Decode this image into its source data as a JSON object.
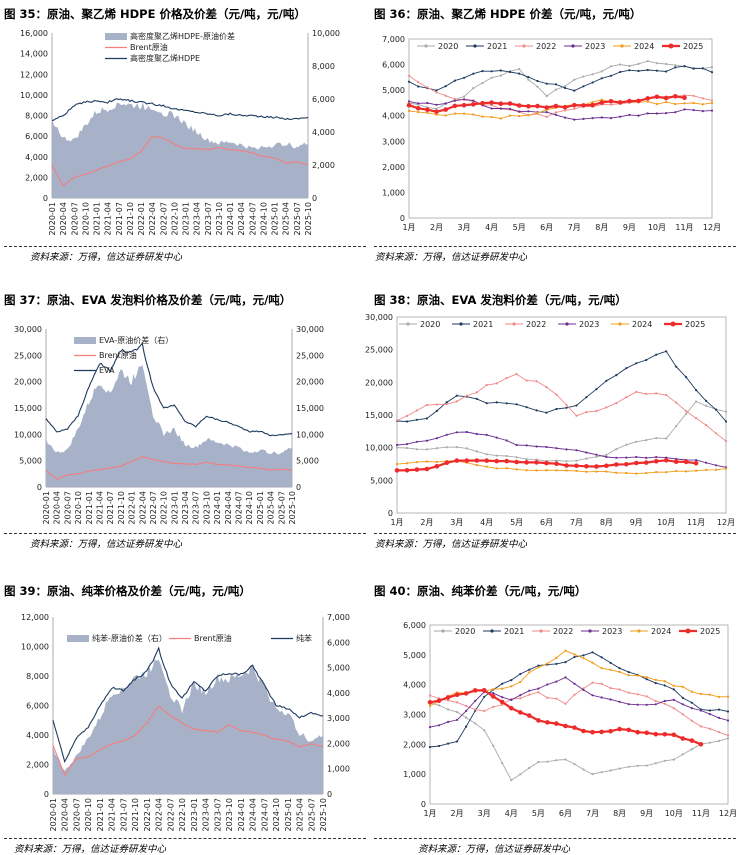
{
  "source_text": "资料来源：万得，信达证券研发中心",
  "chart_data": [
    {
      "id": "fig35",
      "type": "area-line",
      "title": "图 35：原油、聚乙烯 HDPE 价格及价差（元/吨，元/吨）",
      "legend": [
        "高密度聚乙烯HDPE-原油价差",
        "Brent原油",
        "高密度聚乙烯HDPE"
      ],
      "left_axis": {
        "min": 0,
        "max": 16000,
        "ticks": [
          "0",
          "2,000",
          "4,000",
          "6,000",
          "8,000",
          "10,000",
          "12,000",
          "14,000",
          "16,000"
        ]
      },
      "right_axis": {
        "min": 0,
        "max": 10000,
        "ticks": [
          "0",
          "2,000",
          "4,000",
          "6,000",
          "8,000",
          "10,000"
        ]
      },
      "x_labels": [
        "2020-01",
        "2020-04",
        "2020-07",
        "2020-10",
        "2021-01",
        "2021-04",
        "2021-07",
        "2021-10",
        "2022-01",
        "2022-04",
        "2022-07",
        "2022-10",
        "2023-01",
        "2023-04",
        "2023-07",
        "2023-10",
        "2024-01",
        "2024-04",
        "2024-07",
        "2024-10",
        "2025-01",
        "2025-04",
        "2025-07",
        "2025-10"
      ],
      "series": [
        {
          "name": "高密度聚乙烯HDPE-原油价差",
          "axis": "right",
          "kind": "area",
          "values": [
            4800,
            3600,
            3500,
            4400,
            5200,
            5400,
            5800,
            5600,
            5600,
            5500,
            5200,
            5000,
            4500,
            4000,
            3500,
            3300,
            3400,
            3200,
            3000,
            3100,
            3200,
            3300,
            3100,
            3300
          ]
        },
        {
          "name": "Brent原油",
          "axis": "left",
          "kind": "line",
          "values": [
            3200,
            1200,
            2000,
            2300,
            2700,
            3100,
            3500,
            3800,
            4500,
            6000,
            5800,
            5200,
            4800,
            4800,
            4700,
            4900,
            4700,
            4600,
            4400,
            4000,
            3900,
            3400,
            3500,
            3200
          ]
        },
        {
          "name": "高密度聚乙烯HDPE",
          "axis": "right",
          "kind": "line",
          "values": [
            4700,
            5000,
            5600,
            5800,
            5900,
            5800,
            6000,
            5900,
            5800,
            5700,
            5600,
            5400,
            5300,
            5200,
            5100,
            5000,
            5100,
            5000,
            5000,
            4900,
            4900,
            4800,
            4800,
            4900
          ]
        }
      ]
    },
    {
      "id": "fig36",
      "type": "line",
      "title": "图 36：原油、聚乙烯 HDPE 价差（元/吨，元/吨）",
      "y_axis": {
        "min": 0,
        "max": 7000,
        "ticks": [
          "0",
          "1,000",
          "2,000",
          "3,000",
          "4,000",
          "5,000",
          "6,000",
          "7,000"
        ]
      },
      "x_labels": [
        "1月",
        "2月",
        "3月",
        "4月",
        "5月",
        "6月",
        "7月",
        "8月",
        "9月",
        "10月",
        "11月",
        "12月"
      ],
      "series": [
        {
          "name": "2020",
          "values": [
            4500,
            4300,
            4800,
            5500,
            5800,
            4800,
            5400,
            5800,
            6000,
            6100,
            5900,
            5900
          ]
        },
        {
          "name": "2021",
          "values": [
            5300,
            5000,
            5500,
            5800,
            5600,
            5300,
            5000,
            5400,
            5800,
            5700,
            6000,
            5700
          ]
        },
        {
          "name": "2022",
          "values": [
            5500,
            4900,
            4600,
            4400,
            4100,
            4000,
            4300,
            4400,
            4500,
            4700,
            4800,
            4600
          ]
        },
        {
          "name": "2023",
          "values": [
            4600,
            4400,
            4700,
            4300,
            4200,
            4100,
            3800,
            3900,
            4000,
            4100,
            4200,
            4200
          ]
        },
        {
          "name": "2024",
          "values": [
            4200,
            4000,
            4100,
            3900,
            4000,
            4200,
            4400,
            4600,
            4600,
            4500,
            4500,
            4500
          ]
        },
        {
          "name": "2025",
          "values": [
            4400,
            4200,
            4400,
            4500,
            4400,
            4300,
            4400,
            4500,
            4600,
            4700,
            4700
          ]
        }
      ]
    },
    {
      "id": "fig37",
      "type": "area-line",
      "title": "图 37：原油、EVA 发泡料价格及价差（元/吨，元/吨）",
      "legend": [
        "EVA-原油价差（右）",
        "Brent原油",
        "EVA"
      ],
      "left_axis": {
        "min": 0,
        "max": 30000,
        "ticks": [
          "0",
          "5,000",
          "10,000",
          "15,000",
          "20,000",
          "25,000",
          "30,000"
        ]
      },
      "right_axis": {
        "min": 0,
        "max": 30000,
        "ticks": [
          "0",
          "5,000",
          "10,000",
          "15,000",
          "20,000",
          "25,000",
          "30,000"
        ]
      },
      "x_labels": [
        "2020-01",
        "2020-04",
        "2020-07",
        "2020-10",
        "2021-01",
        "2021-04",
        "2021-07",
        "2021-10",
        "2022-01",
        "2022-04",
        "2022-07",
        "2022-10",
        "2023-01",
        "2023-04",
        "2023-07",
        "2023-10",
        "2024-01",
        "2024-04",
        "2024-07",
        "2024-10",
        "2025-01",
        "2025-04",
        "2025-07",
        "2025-10"
      ],
      "series": [
        {
          "name": "EVA-原油价差（右）",
          "axis": "right",
          "kind": "area",
          "values": [
            9000,
            6500,
            7000,
            11000,
            16000,
            20000,
            18000,
            22000,
            20000,
            24000,
            14000,
            10000,
            11000,
            8000,
            7500,
            9000,
            8500,
            8000,
            7500,
            6500,
            7000,
            6500,
            6500,
            7500
          ]
        },
        {
          "name": "Brent原油",
          "axis": "left",
          "kind": "line",
          "values": [
            3200,
            1500,
            2300,
            2500,
            3000,
            3300,
            3600,
            4000,
            4800,
            5800,
            5200,
            4800,
            4500,
            4400,
            4300,
            4700,
            4300,
            4200,
            4000,
            3700,
            3600,
            3200,
            3400,
            3200
          ]
        },
        {
          "name": "EVA",
          "axis": "left",
          "kind": "line",
          "values": [
            13000,
            10500,
            11000,
            13500,
            19000,
            23500,
            22000,
            26000,
            25500,
            27000,
            19000,
            15000,
            15500,
            12500,
            11500,
            13500,
            12800,
            12300,
            11500,
            10500,
            10600,
            9800,
            9900,
            10200
          ]
        }
      ]
    },
    {
      "id": "fig38",
      "type": "line",
      "title": "图 38：原油、EVA 发泡料价差（元/吨，元/吨）",
      "y_axis": {
        "min": 0,
        "max": 30000,
        "ticks": [
          "0",
          "5,000",
          "10,000",
          "15,000",
          "20,000",
          "25,000",
          "30,000"
        ]
      },
      "x_labels": [
        "1月",
        "2月",
        "3月",
        "4月",
        "5月",
        "6月",
        "7月",
        "8月",
        "9月",
        "10月",
        "11月",
        "12月"
      ],
      "series": [
        {
          "name": "2020",
          "values": [
            10000,
            9800,
            10200,
            9000,
            8500,
            8000,
            8000,
            9000,
            11000,
            11500,
            17000,
            15500
          ]
        },
        {
          "name": "2021",
          "values": [
            14000,
            14500,
            18000,
            17000,
            16500,
            15500,
            16500,
            20000,
            23000,
            24500,
            19000,
            14000
          ]
        },
        {
          "name": "2022",
          "values": [
            14000,
            16500,
            17000,
            19500,
            21000,
            19500,
            15000,
            16000,
            18500,
            18000,
            14500,
            11000
          ]
        },
        {
          "name": "2023",
          "values": [
            10500,
            11000,
            12500,
            12000,
            10500,
            10000,
            9500,
            8500,
            8500,
            8500,
            8000,
            7000
          ]
        },
        {
          "name": "2024",
          "values": [
            7500,
            7800,
            8000,
            7000,
            6700,
            6500,
            6400,
            6300,
            6100,
            6300,
            6500,
            6800
          ]
        },
        {
          "name": "2025",
          "values": [
            6500,
            6800,
            8000,
            8000,
            7800,
            7600,
            7200,
            7200,
            7700,
            8000,
            7600
          ]
        }
      ]
    },
    {
      "id": "fig39",
      "type": "area-line",
      "title": "图 39：原油、纯苯价格及价差（元/吨，元/吨）",
      "legend": [
        "纯苯-原油价差（右）",
        "Brent原油",
        "纯苯"
      ],
      "left_axis": {
        "min": 0,
        "max": 12000,
        "ticks": [
          "0",
          "2,000",
          "4,000",
          "6,000",
          "8,000",
          "10,000",
          "12,000"
        ]
      },
      "right_axis": {
        "min": 0,
        "max": 7000,
        "ticks": [
          "0",
          "1,000",
          "2,000",
          "3,000",
          "4,000",
          "5,000",
          "6,000",
          "7,000"
        ]
      },
      "x_labels": [
        "2020-01",
        "2020-04",
        "2020-07",
        "2020-10",
        "2021-01",
        "2021-04",
        "2021-07",
        "2021-10",
        "2022-01",
        "2022-04",
        "2022-07",
        "2022-10",
        "2023-01",
        "2023-04",
        "2023-07",
        "2023-10",
        "2024-01",
        "2024-04",
        "2024-07",
        "2024-10",
        "2025-01",
        "2025-04",
        "2025-07",
        "2025-10"
      ],
      "series": [
        {
          "name": "纯苯-原油价差（右）",
          "axis": "right",
          "kind": "area",
          "values": [
            1800,
            900,
            1500,
            2200,
            3000,
            4000,
            4200,
            4600,
            4800,
            5500,
            4000,
            3300,
            4400,
            4000,
            4600,
            4500,
            4700,
            5000,
            4200,
            3400,
            3200,
            2400,
            2100,
            2300
          ]
        },
        {
          "name": "Brent原油",
          "axis": "left",
          "kind": "line",
          "values": [
            3300,
            1300,
            2400,
            2500,
            3000,
            3400,
            3600,
            4000,
            4800,
            6000,
            5300,
            4800,
            4400,
            4300,
            4200,
            4700,
            4300,
            4200,
            4000,
            3700,
            3600,
            3200,
            3400,
            3200
          ]
        },
        {
          "name": "纯苯",
          "axis": "left",
          "kind": "line",
          "values": [
            5000,
            2200,
            3800,
            4500,
            6000,
            7200,
            7000,
            7800,
            8300,
            9800,
            7500,
            6500,
            7600,
            7000,
            8000,
            8200,
            8100,
            8700,
            7400,
            6000,
            5800,
            5200,
            5500,
            5300
          ]
        }
      ]
    },
    {
      "id": "fig40",
      "type": "line",
      "title": "图 40：原油、纯苯价差（元/吨，元/吨）",
      "y_axis": {
        "min": 0,
        "max": 6000,
        "ticks": [
          "0",
          "1,000",
          "2,000",
          "3,000",
          "4,000",
          "5,000",
          "6,000"
        ]
      },
      "x_labels": [
        "1月",
        "2月",
        "3月",
        "4月",
        "5月",
        "6月",
        "7月",
        "8月",
        "9月",
        "10月",
        "11月",
        "12月"
      ],
      "series": [
        {
          "name": "2020",
          "values": [
            3400,
            3100,
            2500,
            800,
            1400,
            1500,
            1000,
            1200,
            1300,
            1500,
            2000,
            2200
          ]
        },
        {
          "name": "2021",
          "values": [
            1900,
            2100,
            3600,
            4200,
            4600,
            4800,
            5100,
            4500,
            4200,
            3800,
            3200,
            3100
          ]
        },
        {
          "name": "2022",
          "values": [
            3600,
            3400,
            3100,
            3500,
            3700,
            3400,
            4100,
            3800,
            3600,
            3200,
            2600,
            2300
          ]
        },
        {
          "name": "2023",
          "values": [
            2600,
            2800,
            3800,
            3500,
            3900,
            4200,
            3600,
            3400,
            3300,
            3500,
            3100,
            2800
          ]
        },
        {
          "name": "2024",
          "values": [
            3300,
            3700,
            3800,
            3900,
            4600,
            5100,
            4700,
            4400,
            4300,
            4000,
            3700,
            3600
          ]
        },
        {
          "name": "2025",
          "values": [
            3400,
            3700,
            3800,
            3200,
            2800,
            2600,
            2400,
            2500,
            2400,
            2300,
            2000
          ]
        }
      ]
    }
  ],
  "colors": {
    "area": "#A7B2C8",
    "brent": "#F47D7D",
    "product": "#1F3A60",
    "y2020": "#AAAAAA",
    "y2021": "#1F3A60",
    "y2022": "#F08A8A",
    "y2023": "#6A2C91",
    "y2024": "#F39B1A",
    "y2025": "#EE2B2B"
  }
}
